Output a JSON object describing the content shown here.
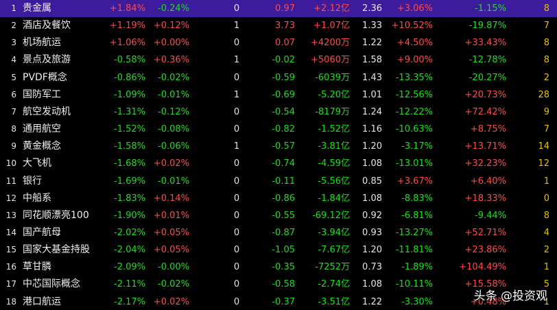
{
  "table": {
    "rows": [
      [
        "1",
        "贵金属",
        "+1.84%",
        "-0.24%",
        "0",
        "0.97",
        "+2.12亿",
        "2.36",
        "+3.06%",
        "-1.15%",
        "8"
      ],
      [
        "2",
        "酒店及餐饮",
        "+1.19%",
        "+0.12%",
        "1",
        "3.73",
        "+1.07亿",
        "1.33",
        "+10.52%",
        "-19.87%",
        "7"
      ],
      [
        "3",
        "机场航运",
        "+1.06%",
        "+0.00%",
        "0",
        "0.07",
        "+4200万",
        "1.22",
        "+4.50%",
        "+33.43%",
        "8"
      ],
      [
        "4",
        "景点及旅游",
        "-0.58%",
        "+0.36%",
        "1",
        "-0.02",
        "+5060万",
        "1.58",
        "+9.00%",
        "-12.78%",
        "8"
      ],
      [
        "5",
        "PVDF概念",
        "-0.86%",
        "-0.02%",
        "0",
        "-0.59",
        "-6039万",
        "1.43",
        "-13.35%",
        "-20.27%",
        "2"
      ],
      [
        "6",
        "国防军工",
        "-1.09%",
        "-0.01%",
        "1",
        "-0.69",
        "-5.20亿",
        "1.01",
        "-12.56%",
        "+20.73%",
        "28"
      ],
      [
        "7",
        "航空发动机",
        "-1.31%",
        "-0.12%",
        "0",
        "-0.54",
        "-8179万",
        "1.24",
        "-12.22%",
        "+72.42%",
        "9"
      ],
      [
        "8",
        "通用航空",
        "-1.52%",
        "-0.08%",
        "0",
        "-0.82",
        "-1.52亿",
        "1.16",
        "-10.63%",
        "+8.75%",
        "7"
      ],
      [
        "9",
        "黄金概念",
        "-1.58%",
        "-0.06%",
        "1",
        "-0.57",
        "-3.81亿",
        "1.20",
        "-3.17%",
        "+13.71%",
        "14"
      ],
      [
        "10",
        "大飞机",
        "-1.68%",
        "+0.02%",
        "0",
        "-0.74",
        "-4.59亿",
        "1.08",
        "-13.01%",
        "+32.23%",
        "12"
      ],
      [
        "11",
        "银行",
        "-1.69%",
        "-0.01%",
        "0",
        "-0.11",
        "-5.56亿",
        "0.85",
        "+3.67%",
        "+6.40%",
        "1"
      ],
      [
        "12",
        "中船系",
        "-1.83%",
        "+0.14%",
        "0",
        "-0.86",
        "-1.84亿",
        "1.08",
        "-8.83%",
        "+18.33%",
        "0"
      ],
      [
        "13",
        "同花顺漂亮100",
        "-1.90%",
        "+0.01%",
        "0",
        "-0.55",
        "-69.12亿",
        "0.92",
        "-6.81%",
        "-9.44%",
        "8"
      ],
      [
        "14",
        "国产航母",
        "-2.02%",
        "+0.05%",
        "0",
        "-0.87",
        "-3.94亿",
        "0.93",
        "-13.27%",
        "+52.71%",
        "4"
      ],
      [
        "15",
        "国家大基金持股",
        "-2.04%",
        "+0.05%",
        "0",
        "-1.05",
        "-7.67亿",
        "1.20",
        "-11.81%",
        "+23.86%",
        "2"
      ],
      [
        "16",
        "草甘膦",
        "-2.09%",
        "-0.00%",
        "0",
        "-0.35",
        "-7252万",
        "0.73",
        "-1.89%",
        "+104.49%",
        "1"
      ],
      [
        "17",
        "中芯国际概念",
        "-2.11%",
        "-0.02%",
        "0",
        "-0.58",
        "-2.74亿",
        "1.08",
        "-10.11%",
        "+15.58%",
        "5"
      ],
      [
        "18",
        "港口航运",
        "-2.17%",
        "+0.02%",
        "0",
        "-0.37",
        "-3.51亿",
        "1.22",
        "-3.30%",
        "+0.48%",
        "1"
      ]
    ]
  },
  "watermark": "头条 @投资观"
}
